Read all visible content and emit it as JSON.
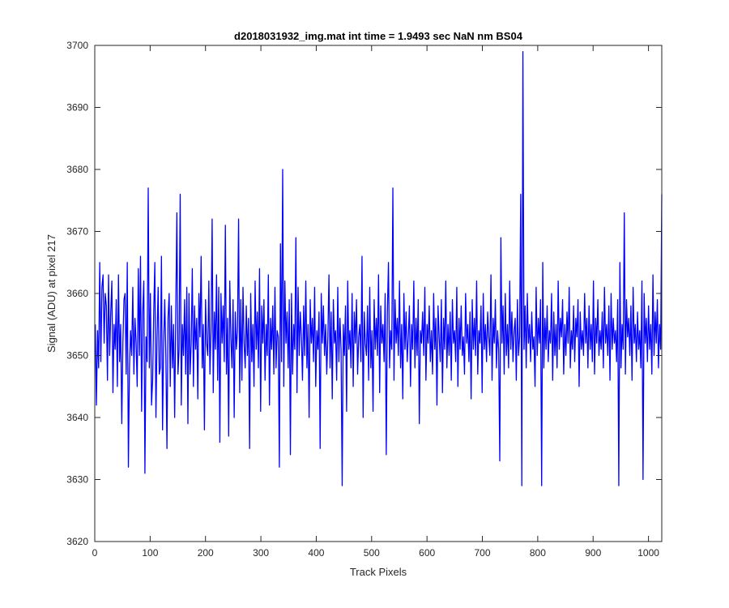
{
  "chart_data": {
    "type": "line",
    "title": "d2018031932_img.mat int time = 1.9493 sec  NaN nm BS04",
    "xlabel": "Track Pixels",
    "ylabel": "Signal (ADU) at pixel 217",
    "xlim": [
      0,
      1024
    ],
    "ylim": [
      3620,
      3700
    ],
    "xticks": [
      0,
      100,
      200,
      300,
      400,
      500,
      600,
      700,
      800,
      900,
      1000
    ],
    "yticks": [
      3620,
      3630,
      3640,
      3650,
      3660,
      3670,
      3680,
      3690,
      3700
    ],
    "grid": false,
    "series": [
      {
        "color": "#0000ff",
        "x_start": 1,
        "x_step": 1,
        "values": [
          3655,
          3642,
          3654,
          3648,
          3665,
          3649,
          3661,
          3663,
          3652,
          3660,
          3658,
          3646,
          3663,
          3650,
          3657,
          3662,
          3644,
          3655,
          3651,
          3659,
          3645,
          3663,
          3649,
          3655,
          3639,
          3652,
          3659,
          3660,
          3647,
          3665,
          3632,
          3648,
          3654,
          3650,
          3661,
          3647,
          3656,
          3652,
          3645,
          3664,
          3650,
          3666,
          3641,
          3657,
          3662,
          3631,
          3653,
          3649,
          3677,
          3648,
          3660,
          3642,
          3646,
          3657,
          3665,
          3640,
          3653,
          3661,
          3647,
          3648,
          3666,
          3638,
          3652,
          3659,
          3650,
          3635,
          3656,
          3660,
          3645,
          3658,
          3648,
          3655,
          3640,
          3657,
          3673,
          3647,
          3651,
          3676,
          3642,
          3655,
          3650,
          3659,
          3647,
          3661,
          3639,
          3660,
          3647,
          3652,
          3664,
          3645,
          3658,
          3651,
          3656,
          3643,
          3660,
          3653,
          3666,
          3648,
          3655,
          3638,
          3659,
          3652,
          3650,
          3662,
          3647,
          3654,
          3672,
          3644,
          3657,
          3651,
          3663,
          3646,
          3661,
          3636,
          3660,
          3652,
          3658,
          3649,
          3671,
          3647,
          3656,
          3637,
          3662,
          3653,
          3648,
          3659,
          3640,
          3657,
          3651,
          3654,
          3672,
          3644,
          3659,
          3646,
          3661,
          3652,
          3648,
          3658,
          3650,
          3656,
          3635,
          3660,
          3649,
          3655,
          3645,
          3662,
          3651,
          3657,
          3648,
          3664,
          3641,
          3658,
          3652,
          3659,
          3646,
          3655,
          3650,
          3663,
          3642,
          3656,
          3651,
          3658,
          3647,
          3661,
          3648,
          3654,
          3653,
          3632,
          3668,
          3649,
          3680,
          3645,
          3662,
          3652,
          3657,
          3648,
          3659,
          3634,
          3660,
          3647,
          3655,
          3651,
          3669,
          3644,
          3661,
          3650,
          3657,
          3653,
          3646,
          3658,
          3650,
          3662,
          3648,
          3655,
          3640,
          3659,
          3652,
          3656,
          3649,
          3661,
          3645,
          3654,
          3651,
          3657,
          3635,
          3660,
          3652,
          3658,
          3650,
          3655,
          3647,
          3653,
          3663,
          3648,
          3657,
          3643,
          3659,
          3652,
          3654,
          3646,
          3661,
          3649,
          3656,
          3651,
          3629,
          3655,
          3650,
          3658,
          3641,
          3662,
          3651,
          3654,
          3648,
          3660,
          3645,
          3657,
          3652,
          3659,
          3647,
          3653,
          3655,
          3649,
          3666,
          3640,
          3657,
          3652,
          3650,
          3658,
          3646,
          3661,
          3648,
          3654,
          3641,
          3659,
          3651,
          3656,
          3650,
          3663,
          3644,
          3658,
          3652,
          3655,
          3649,
          3660,
          3634,
          3657,
          3665,
          3648,
          3654,
          3651,
          3677,
          3646,
          3659,
          3652,
          3656,
          3650,
          3662,
          3648,
          3655,
          3643,
          3660,
          3651,
          3657,
          3649,
          3653,
          3658,
          3645,
          3655,
          3651,
          3662,
          3648,
          3656,
          3650,
          3659,
          3639,
          3654,
          3652,
          3657,
          3650,
          3661,
          3646,
          3655,
          3652,
          3658,
          3649,
          3654,
          3647,
          3660,
          3651,
          3656,
          3642,
          3658,
          3653,
          3649,
          3659,
          3644,
          3656,
          3651,
          3662,
          3648,
          3655,
          3650,
          3657,
          3646,
          3659,
          3652,
          3654,
          3649,
          3661,
          3645,
          3656,
          3651,
          3658,
          3650,
          3653,
          3647,
          3660,
          3652,
          3655,
          3649,
          3657,
          3643,
          3659,
          3651,
          3656,
          3650,
          3662,
          3647,
          3654,
          3652,
          3658,
          3644,
          3660,
          3651,
          3655,
          3649,
          3657,
          3653,
          3650,
          3663,
          3646,
          3656,
          3652,
          3659,
          3648,
          3654,
          3651,
          3633,
          3669,
          3652,
          3658,
          3647,
          3660,
          3650,
          3655,
          3648,
          3662,
          3651,
          3657,
          3649,
          3654,
          3656,
          3646,
          3659,
          3650,
          3653,
          3676,
          3629,
          3699,
          3651,
          3658,
          3648,
          3660,
          3652,
          3655,
          3649,
          3657,
          3651,
          3653,
          3645,
          3661,
          3650,
          3656,
          3652,
          3659,
          3629,
          3665,
          3648,
          3656,
          3651,
          3658,
          3649,
          3654,
          3652,
          3660,
          3646,
          3657,
          3650,
          3655,
          3648,
          3662,
          3651,
          3656,
          3653,
          3659,
          3647,
          3655,
          3650,
          3657,
          3652,
          3661,
          3648,
          3654,
          3651,
          3658,
          3649,
          3656,
          3653,
          3659,
          3645,
          3657,
          3651,
          3654,
          3650,
          3660,
          3652,
          3656,
          3648,
          3658,
          3651,
          3655,
          3649,
          3662,
          3647,
          3656,
          3652,
          3659,
          3650,
          3654,
          3651,
          3657,
          3648,
          3661,
          3652,
          3655,
          3650,
          3658,
          3646,
          3660,
          3651,
          3656,
          3652,
          3654,
          3649,
          3659,
          3629,
          3665,
          3648,
          3655,
          3651,
          3673,
          3647,
          3659,
          3653,
          3656,
          3650,
          3658,
          3646,
          3661,
          3652,
          3655,
          3649,
          3657,
          3651,
          3654,
          3648,
          3662,
          3630,
          3660,
          3652,
          3656,
          3649,
          3658,
          3651,
          3655,
          3647,
          3663,
          3650,
          3657,
          3652,
          3659,
          3648,
          3655,
          3651,
          3676
        ]
      }
    ]
  }
}
